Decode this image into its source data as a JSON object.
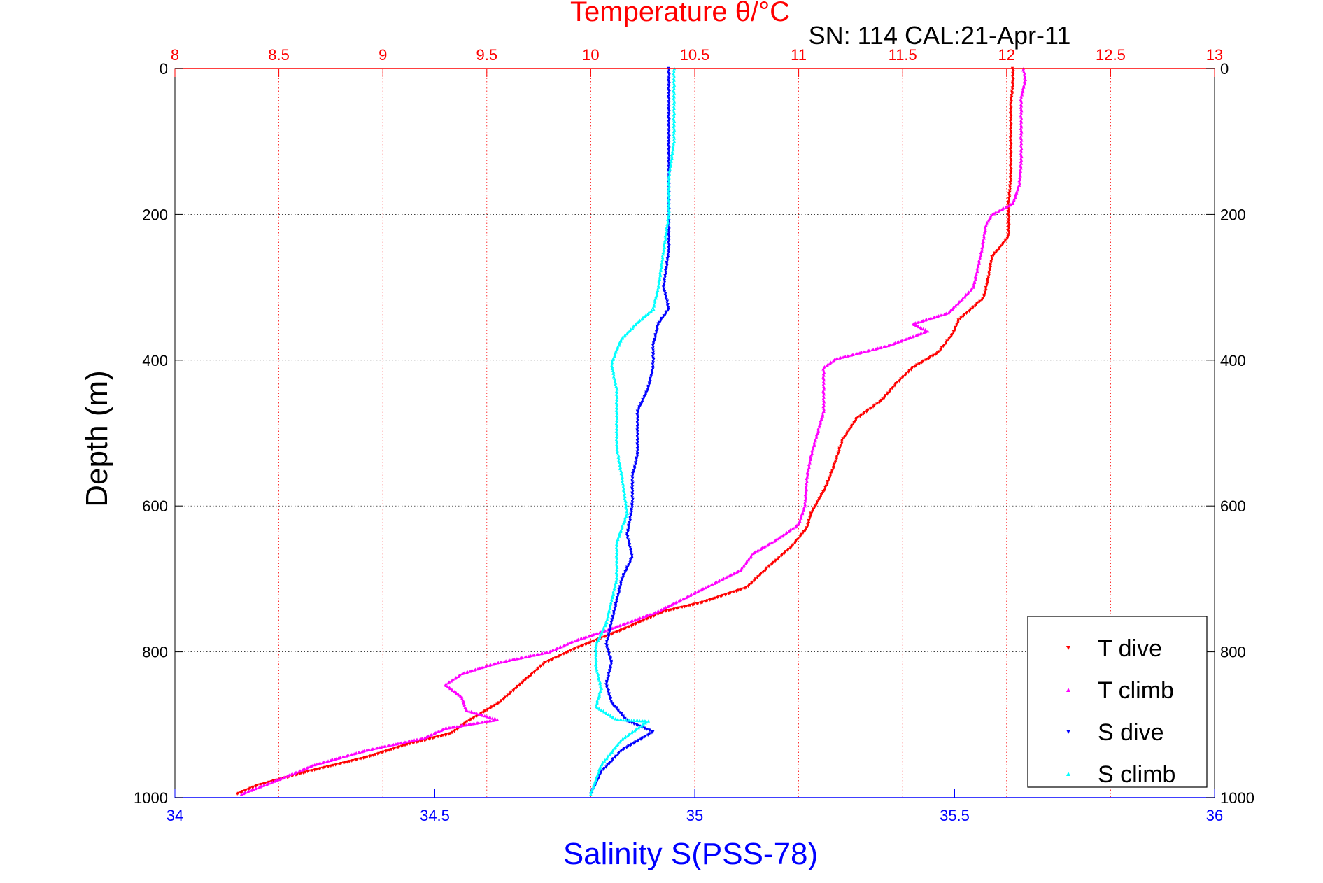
{
  "chart_data": {
    "type": "scatter",
    "title": "Temperature θ/°C",
    "subtitle": "SN: 114  CAL:21-Apr-11",
    "xlabel": "Salinity S(PSS-78)",
    "ylabel": "Depth (m)",
    "x_top": {
      "label": "Temperature θ/°C",
      "range": [
        8,
        13
      ],
      "ticks": [
        "8",
        "8.5",
        "9",
        "9.5",
        "10",
        "10.5",
        "11",
        "11.5",
        "12",
        "12.5",
        "13"
      ]
    },
    "x_bottom": {
      "label": "Salinity S(PSS-78)",
      "range": [
        34,
        36
      ],
      "ticks": [
        "34",
        "34.5",
        "35",
        "35.5",
        "36"
      ]
    },
    "y": {
      "label": "Depth (m)",
      "range": [
        0,
        1000
      ],
      "reversed": true,
      "ticks": [
        "0",
        "200",
        "400",
        "600",
        "800",
        "1000"
      ]
    },
    "grid": true,
    "legend_position": "bottom-right",
    "series": [
      {
        "name": "T dive",
        "axis": "temperature",
        "color": "#ff0000",
        "marker": "triangle-down",
        "points": [
          [
            12.03,
            0
          ],
          [
            12.03,
            20
          ],
          [
            12.02,
            50
          ],
          [
            12.02,
            100
          ],
          [
            12.02,
            150
          ],
          [
            12.01,
            185
          ],
          [
            12.01,
            200
          ],
          [
            12.01,
            230
          ],
          [
            11.97,
            245
          ],
          [
            11.93,
            258
          ],
          [
            11.91,
            290
          ],
          [
            11.89,
            315
          ],
          [
            11.83,
            330
          ],
          [
            11.77,
            345
          ],
          [
            11.74,
            365
          ],
          [
            11.67,
            390
          ],
          [
            11.55,
            410
          ],
          [
            11.47,
            432
          ],
          [
            11.4,
            455
          ],
          [
            11.28,
            480
          ],
          [
            11.21,
            510
          ],
          [
            11.17,
            545
          ],
          [
            11.13,
            575
          ],
          [
            11.06,
            610
          ],
          [
            11.04,
            630
          ],
          [
            10.97,
            655
          ],
          [
            10.85,
            685
          ],
          [
            10.75,
            712
          ],
          [
            10.54,
            732
          ],
          [
            10.35,
            745
          ],
          [
            10.15,
            770
          ],
          [
            9.93,
            795
          ],
          [
            9.78,
            815
          ],
          [
            9.68,
            840
          ],
          [
            9.56,
            870
          ],
          [
            9.4,
            897
          ],
          [
            9.33,
            912
          ],
          [
            9.12,
            927
          ],
          [
            8.92,
            945
          ],
          [
            8.63,
            965
          ],
          [
            8.4,
            983
          ],
          [
            8.3,
            995
          ]
        ]
      },
      {
        "name": "T climb",
        "axis": "temperature",
        "color": "#ff00ff",
        "marker": "triangle-up",
        "points": [
          [
            12.08,
            0
          ],
          [
            12.09,
            15
          ],
          [
            12.07,
            40
          ],
          [
            12.07,
            80
          ],
          [
            12.07,
            130
          ],
          [
            12.06,
            160
          ],
          [
            12.03,
            185
          ],
          [
            11.93,
            200
          ],
          [
            11.9,
            215
          ],
          [
            11.88,
            250
          ],
          [
            11.84,
            300
          ],
          [
            11.78,
            318
          ],
          [
            11.72,
            335
          ],
          [
            11.55,
            350
          ],
          [
            11.62,
            360
          ],
          [
            11.43,
            380
          ],
          [
            11.18,
            398
          ],
          [
            11.12,
            410
          ],
          [
            11.12,
            440
          ],
          [
            11.12,
            470
          ],
          [
            11.09,
            500
          ],
          [
            11.06,
            530
          ],
          [
            11.04,
            560
          ],
          [
            11.03,
            600
          ],
          [
            11.0,
            625
          ],
          [
            10.9,
            645
          ],
          [
            10.78,
            665
          ],
          [
            10.72,
            688
          ],
          [
            10.55,
            712
          ],
          [
            10.32,
            745
          ],
          [
            10.1,
            768
          ],
          [
            9.92,
            785
          ],
          [
            9.8,
            800
          ],
          [
            9.55,
            815
          ],
          [
            9.38,
            830
          ],
          [
            9.3,
            845
          ],
          [
            9.38,
            862
          ],
          [
            9.4,
            880
          ],
          [
            9.55,
            893
          ],
          [
            9.3,
            905
          ],
          [
            9.2,
            918
          ],
          [
            8.92,
            935
          ],
          [
            8.67,
            955
          ],
          [
            8.5,
            975
          ],
          [
            8.32,
            995
          ]
        ]
      },
      {
        "name": "S dive",
        "axis": "salinity",
        "color": "#0000ff",
        "marker": "triangle-down",
        "points": [
          [
            34.95,
            0
          ],
          [
            34.95,
            50
          ],
          [
            34.95,
            100
          ],
          [
            34.95,
            150
          ],
          [
            34.95,
            200
          ],
          [
            34.95,
            250
          ],
          [
            34.94,
            300
          ],
          [
            34.95,
            330
          ],
          [
            34.93,
            350
          ],
          [
            34.92,
            380
          ],
          [
            34.92,
            410
          ],
          [
            34.91,
            440
          ],
          [
            34.89,
            470
          ],
          [
            34.89,
            500
          ],
          [
            34.89,
            530
          ],
          [
            34.88,
            560
          ],
          [
            34.88,
            600
          ],
          [
            34.87,
            640
          ],
          [
            34.88,
            670
          ],
          [
            34.86,
            700
          ],
          [
            34.85,
            730
          ],
          [
            34.84,
            760
          ],
          [
            34.83,
            790
          ],
          [
            34.84,
            815
          ],
          [
            34.83,
            845
          ],
          [
            34.84,
            870
          ],
          [
            34.87,
            895
          ],
          [
            34.92,
            910
          ],
          [
            34.86,
            935
          ],
          [
            34.82,
            965
          ],
          [
            34.8,
            995
          ]
        ]
      },
      {
        "name": "S climb",
        "axis": "salinity",
        "color": "#00ffff",
        "marker": "triangle-up",
        "points": [
          [
            34.96,
            0
          ],
          [
            34.96,
            50
          ],
          [
            34.96,
            100
          ],
          [
            34.95,
            150
          ],
          [
            34.95,
            200
          ],
          [
            34.94,
            250
          ],
          [
            34.93,
            300
          ],
          [
            34.92,
            330
          ],
          [
            34.89,
            348
          ],
          [
            34.86,
            370
          ],
          [
            34.85,
            385
          ],
          [
            34.84,
            405
          ],
          [
            34.85,
            440
          ],
          [
            34.85,
            480
          ],
          [
            34.85,
            520
          ],
          [
            34.86,
            560
          ],
          [
            34.87,
            610
          ],
          [
            34.85,
            650
          ],
          [
            34.85,
            700
          ],
          [
            34.84,
            730
          ],
          [
            34.83,
            760
          ],
          [
            34.81,
            790
          ],
          [
            34.81,
            820
          ],
          [
            34.82,
            850
          ],
          [
            34.81,
            875
          ],
          [
            34.85,
            893
          ],
          [
            34.91,
            895
          ],
          [
            34.86,
            920
          ],
          [
            34.82,
            955
          ],
          [
            34.8,
            995
          ]
        ]
      }
    ]
  }
}
